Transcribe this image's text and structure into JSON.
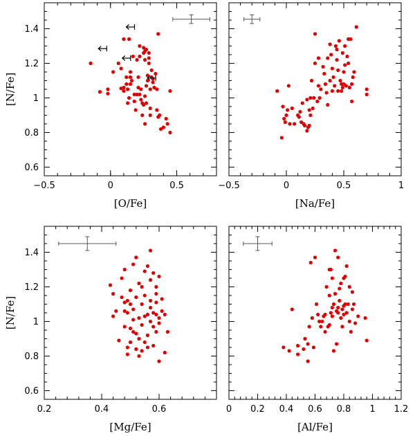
{
  "chart_data": [
    {
      "type": "scatter",
      "xlabel": "[O/Fe]",
      "ylabel": "[N/Fe]",
      "xlim": [
        -0.5,
        0.8
      ],
      "ylim": [
        0.55,
        1.55
      ],
      "xticks": [
        -0.5,
        0,
        0.5
      ],
      "xtick_labels": [
        "−0.5",
        "0",
        "0.5"
      ],
      "yticks": [
        0.6,
        0.8,
        1,
        1.2,
        1.4
      ],
      "ytick_labels": [
        "0.6",
        "0.8",
        "1",
        "1.2",
        "1.4"
      ],
      "show_y_labels": true,
      "errorbar": {
        "x": 0.61,
        "y": 1.455,
        "xerr": 0.14,
        "yerr": 0.025
      },
      "upper_limits": [
        [
          0.15,
          1.41
        ],
        [
          -0.06,
          1.285
        ],
        [
          0.12,
          1.23
        ],
        [
          0.31,
          1.115
        ]
      ],
      "points": [
        [
          -0.15,
          1.2
        ],
        [
          -0.08,
          1.035
        ],
        [
          -0.02,
          1.05
        ],
        [
          -0.02,
          1.025
        ],
        [
          0.02,
          1.15
        ],
        [
          0.06,
          1.2
        ],
        [
          0.08,
          1.17
        ],
        [
          0.08,
          1.055
        ],
        [
          0.1,
          1.06
        ],
        [
          0.1,
          1.04
        ],
        [
          0.1,
          1.34
        ],
        [
          0.12,
          1.08
        ],
        [
          0.12,
          1.12
        ],
        [
          0.13,
          1.05
        ],
        [
          0.13,
          0.97
        ],
        [
          0.14,
          1.0
        ],
        [
          0.14,
          1.34
        ],
        [
          0.15,
          1.12
        ],
        [
          0.15,
          1.08
        ],
        [
          0.15,
          1.15
        ],
        [
          0.16,
          1.1
        ],
        [
          0.18,
          1.02
        ],
        [
          0.18,
          0.98
        ],
        [
          0.19,
          0.93
        ],
        [
          0.2,
          1.22
        ],
        [
          0.2,
          1.02
        ],
        [
          0.21,
          1.12
        ],
        [
          0.21,
          1.06
        ],
        [
          0.22,
          1.02
        ],
        [
          0.22,
          1.24
        ],
        [
          0.23,
          0.99
        ],
        [
          0.23,
          1.05
        ],
        [
          0.24,
          0.97
        ],
        [
          0.24,
          0.9
        ],
        [
          0.25,
          0.96
        ],
        [
          0.25,
          1.26
        ],
        [
          0.25,
          1.29
        ],
        [
          0.26,
          1.27
        ],
        [
          0.26,
          1.22
        ],
        [
          0.26,
          1.01
        ],
        [
          0.26,
          0.85
        ],
        [
          0.27,
          1.07
        ],
        [
          0.27,
          1.28
        ],
        [
          0.27,
          0.97
        ],
        [
          0.28,
          1.13
        ],
        [
          0.28,
          1.1
        ],
        [
          0.29,
          1.23
        ],
        [
          0.29,
          1.26
        ],
        [
          0.29,
          1.2
        ],
        [
          0.3,
          1.05
        ],
        [
          0.3,
          0.94
        ],
        [
          0.3,
          0.9
        ],
        [
          0.31,
          1.16
        ],
        [
          0.31,
          1.12
        ],
        [
          0.32,
          1.11
        ],
        [
          0.32,
          1.09
        ],
        [
          0.33,
          1.06
        ],
        [
          0.34,
          1.14
        ],
        [
          0.35,
          1.05
        ],
        [
          0.35,
          0.93
        ],
        [
          0.36,
          1.37
        ],
        [
          0.36,
          0.89
        ],
        [
          0.37,
          0.9
        ],
        [
          0.38,
          0.82
        ],
        [
          0.4,
          0.83
        ],
        [
          0.42,
          0.88
        ],
        [
          0.43,
          0.85
        ],
        [
          0.45,
          0.8
        ],
        [
          0.45,
          1.04
        ],
        [
          0.22,
          1.3
        ],
        [
          0.17,
          1.24
        ]
      ]
    },
    {
      "type": "scatter",
      "xlabel": "[Na/Fe]",
      "ylabel": "",
      "xlim": [
        -0.5,
        1.0
      ],
      "ylim": [
        0.55,
        1.55
      ],
      "xticks": [
        -0.5,
        0,
        0.5,
        1
      ],
      "xtick_labels": [
        "−0.5",
        "0",
        "0.5",
        "1"
      ],
      "yticks": [
        0.6,
        0.8,
        1,
        1.2,
        1.4
      ],
      "ytick_labels": [],
      "show_y_labels": false,
      "errorbar": {
        "x": -0.3,
        "y": 1.455,
        "xerr": 0.07,
        "yerr": 0.025
      },
      "upper_limits": [],
      "points": [
        [
          -0.08,
          1.04
        ],
        [
          -0.04,
          0.77
        ],
        [
          -0.03,
          0.95
        ],
        [
          -0.02,
          0.88
        ],
        [
          -0.01,
          0.86
        ],
        [
          0.0,
          0.9
        ],
        [
          0.01,
          0.93
        ],
        [
          0.02,
          1.07
        ],
        [
          0.03,
          0.85
        ],
        [
          0.05,
          0.94
        ],
        [
          0.07,
          0.85
        ],
        [
          0.1,
          0.9
        ],
        [
          0.11,
          0.89
        ],
        [
          0.12,
          0.92
        ],
        [
          0.13,
          0.86
        ],
        [
          0.14,
          0.97
        ],
        [
          0.15,
          0.85
        ],
        [
          0.16,
          0.84
        ],
        [
          0.18,
          0.81
        ],
        [
          0.18,
          0.99
        ],
        [
          0.19,
          0.83
        ],
        [
          0.2,
          0.93
        ],
        [
          0.2,
          0.84
        ],
        [
          0.21,
          0.9
        ],
        [
          0.21,
          1.0
        ],
        [
          0.22,
          1.1
        ],
        [
          0.23,
          0.94
        ],
        [
          0.24,
          1.0
        ],
        [
          0.25,
          1.2
        ],
        [
          0.25,
          1.37
        ],
        [
          0.27,
          0.98
        ],
        [
          0.28,
          1.23
        ],
        [
          0.28,
          1.07
        ],
        [
          0.29,
          1.0
        ],
        [
          0.3,
          1.05
        ],
        [
          0.32,
          1.18
        ],
        [
          0.33,
          1.14
        ],
        [
          0.34,
          1.08
        ],
        [
          0.35,
          1.03
        ],
        [
          0.36,
          1.23
        ],
        [
          0.36,
          0.96
        ],
        [
          0.38,
          1.1
        ],
        [
          0.38,
          1.31
        ],
        [
          0.39,
          1.25
        ],
        [
          0.4,
          1.04
        ],
        [
          0.4,
          1.17
        ],
        [
          0.41,
          1.12
        ],
        [
          0.42,
          1.07
        ],
        [
          0.43,
          1.3
        ],
        [
          0.44,
          1.28
        ],
        [
          0.44,
          1.22
        ],
        [
          0.45,
          1.16
        ],
        [
          0.45,
          1.04
        ],
        [
          0.46,
          1.33
        ],
        [
          0.47,
          1.1
        ],
        [
          0.48,
          1.08
        ],
        [
          0.48,
          1.04
        ],
        [
          0.49,
          1.06
        ],
        [
          0.49,
          1.26
        ],
        [
          0.5,
          1.15
        ],
        [
          0.5,
          1.08
        ],
        [
          0.51,
          1.19
        ],
        [
          0.51,
          1.3
        ],
        [
          0.52,
          1.07
        ],
        [
          0.53,
          1.24
        ],
        [
          0.54,
          1.2
        ],
        [
          0.54,
          1.34
        ],
        [
          0.55,
          1.06
        ],
        [
          0.56,
          1.34
        ],
        [
          0.57,
          1.08
        ],
        [
          0.57,
          0.98
        ],
        [
          0.58,
          1.12
        ],
        [
          0.59,
          1.15
        ],
        [
          0.61,
          1.41
        ],
        [
          0.7,
          1.05
        ],
        [
          0.7,
          1.02
        ]
      ]
    },
    {
      "type": "scatter",
      "xlabel": "[Mg/Fe]",
      "ylabel": "[N/Fe]",
      "xlim": [
        0.2,
        0.8
      ],
      "ylim": [
        0.55,
        1.55
      ],
      "xticks": [
        0.2,
        0.4,
        0.6
      ],
      "xtick_labels": [
        "0.2",
        "0.4",
        "0.6"
      ],
      "yticks": [
        0.6,
        0.8,
        1,
        1.2,
        1.4
      ],
      "ytick_labels": [
        "0.6",
        "0.8",
        "1",
        "1.2",
        "1.4"
      ],
      "show_y_labels": true,
      "errorbar": {
        "x": 0.35,
        "y": 1.45,
        "xerr": 0.1,
        "yerr": 0.04
      },
      "upper_limits": [],
      "points": [
        [
          0.43,
          1.21
        ],
        [
          0.44,
          1.16
        ],
        [
          0.44,
          1.03
        ],
        [
          0.45,
          1.06
        ],
        [
          0.46,
          0.89
        ],
        [
          0.47,
          1.14
        ],
        [
          0.47,
          1.25
        ],
        [
          0.48,
          1.11
        ],
        [
          0.48,
          1.06
        ],
        [
          0.48,
          0.97
        ],
        [
          0.48,
          1.3
        ],
        [
          0.49,
          0.85
        ],
        [
          0.49,
          0.81
        ],
        [
          0.49,
          1.12
        ],
        [
          0.49,
          1.05
        ],
        [
          0.5,
          1.1
        ],
        [
          0.5,
          0.96
        ],
        [
          0.5,
          1.18
        ],
        [
          0.5,
          0.88
        ],
        [
          0.51,
          1.33
        ],
        [
          0.51,
          1.01
        ],
        [
          0.51,
          1.07
        ],
        [
          0.52,
          1.37
        ],
        [
          0.52,
          0.84
        ],
        [
          0.52,
          1.14
        ],
        [
          0.52,
          0.93
        ],
        [
          0.53,
          1.22
        ],
        [
          0.53,
          1.02
        ],
        [
          0.53,
          0.9
        ],
        [
          0.54,
          1.1
        ],
        [
          0.54,
          1.2
        ],
        [
          0.54,
          0.98
        ],
        [
          0.54,
          0.83
        ],
        [
          0.55,
          1.15
        ],
        [
          0.55,
          1.03
        ],
        [
          0.55,
          1.29
        ],
        [
          0.55,
          0.88
        ],
        [
          0.56,
          1.04
        ],
        [
          0.56,
          0.85
        ],
        [
          0.56,
          1.32
        ],
        [
          0.56,
          0.92
        ],
        [
          0.57,
          1.12
        ],
        [
          0.57,
          1.08
        ],
        [
          0.57,
          1.24
        ],
        [
          0.57,
          1.41
        ],
        [
          0.57,
          1.0
        ],
        [
          0.58,
          0.97
        ],
        [
          0.58,
          1.05
        ],
        [
          0.58,
          0.86
        ],
        [
          0.59,
          1.11
        ],
        [
          0.59,
          1.2
        ],
        [
          0.59,
          1.16
        ],
        [
          0.59,
          0.94
        ],
        [
          0.59,
          1.04
        ],
        [
          0.6,
          1.02
        ],
        [
          0.6,
          0.77
        ],
        [
          0.6,
          1.26
        ],
        [
          0.6,
          0.99
        ],
        [
          0.61,
          1.06
        ],
        [
          0.61,
          1.13
        ],
        [
          0.62,
          0.82
        ],
        [
          0.62,
          1.04
        ],
        [
          0.63,
          0.94
        ],
        [
          0.58,
          1.28
        ],
        [
          0.51,
          0.94
        ],
        [
          0.53,
          0.8
        ]
      ]
    },
    {
      "type": "scatter",
      "xlabel": "[Al/Fe]",
      "ylabel": "",
      "xlim": [
        0.0,
        1.2
      ],
      "ylim": [
        0.55,
        1.55
      ],
      "xticks": [
        0,
        0.2,
        0.4,
        0.6,
        0.8,
        1,
        1.2
      ],
      "xtick_labels": [
        "0",
        "0.2",
        "0.4",
        "0.6",
        "0.8",
        "1",
        "1.2"
      ],
      "yticks": [
        0.6,
        0.8,
        1,
        1.2,
        1.4
      ],
      "ytick_labels": [],
      "show_y_labels": false,
      "errorbar": {
        "x": 0.2,
        "y": 1.45,
        "xerr": 0.1,
        "yerr": 0.04
      },
      "upper_limits": [],
      "points": [
        [
          0.38,
          0.85
        ],
        [
          0.42,
          0.83
        ],
        [
          0.44,
          1.07
        ],
        [
          0.48,
          0.81
        ],
        [
          0.48,
          0.86
        ],
        [
          0.52,
          0.84
        ],
        [
          0.53,
          0.9
        ],
        [
          0.55,
          0.77
        ],
        [
          0.55,
          0.87
        ],
        [
          0.56,
          0.97
        ],
        [
          0.57,
          1.34
        ],
        [
          0.58,
          1.02
        ],
        [
          0.59,
          0.85
        ],
        [
          0.6,
          1.37
        ],
        [
          0.61,
          1.1
        ],
        [
          0.62,
          1.04
        ],
        [
          0.63,
          1.0
        ],
        [
          0.64,
          0.97
        ],
        [
          0.65,
          1.0
        ],
        [
          0.66,
          1.03
        ],
        [
          0.67,
          0.94
        ],
        [
          0.68,
          1.2
        ],
        [
          0.69,
          0.97
        ],
        [
          0.7,
          1.3
        ],
        [
          0.7,
          1.15
        ],
        [
          0.71,
          1.3
        ],
        [
          0.71,
          1.05
        ],
        [
          0.72,
          1.03
        ],
        [
          0.72,
          1.08
        ],
        [
          0.72,
          1.25
        ],
        [
          0.73,
          0.83
        ],
        [
          0.73,
          1.1
        ],
        [
          0.74,
          1.41
        ],
        [
          0.74,
          1.16
        ],
        [
          0.75,
          0.87
        ],
        [
          0.75,
          1.06
        ],
        [
          0.76,
          1.08
        ],
        [
          0.76,
          1.05
        ],
        [
          0.76,
          1.37
        ],
        [
          0.77,
          1.19
        ],
        [
          0.77,
          1.12
        ],
        [
          0.78,
          1.22
        ],
        [
          0.78,
          1.02
        ],
        [
          0.79,
          1.07
        ],
        [
          0.8,
          1.25
        ],
        [
          0.8,
          1.09
        ],
        [
          0.8,
          1.04
        ],
        [
          0.81,
          1.1
        ],
        [
          0.81,
          1.26
        ],
        [
          0.82,
          1.05
        ],
        [
          0.83,
          1.1
        ],
        [
          0.84,
          1.0
        ],
        [
          0.84,
          1.2
        ],
        [
          0.85,
          0.94
        ],
        [
          0.86,
          1.17
        ],
        [
          0.86,
          1.07
        ],
        [
          0.87,
          1.1
        ],
        [
          0.88,
          0.99
        ],
        [
          0.9,
          1.03
        ],
        [
          0.95,
          1.02
        ],
        [
          0.96,
          0.89
        ],
        [
          0.7,
          0.98
        ],
        [
          0.67,
          1.04
        ],
        [
          0.82,
          1.32
        ],
        [
          0.79,
          0.97
        ]
      ]
    }
  ]
}
